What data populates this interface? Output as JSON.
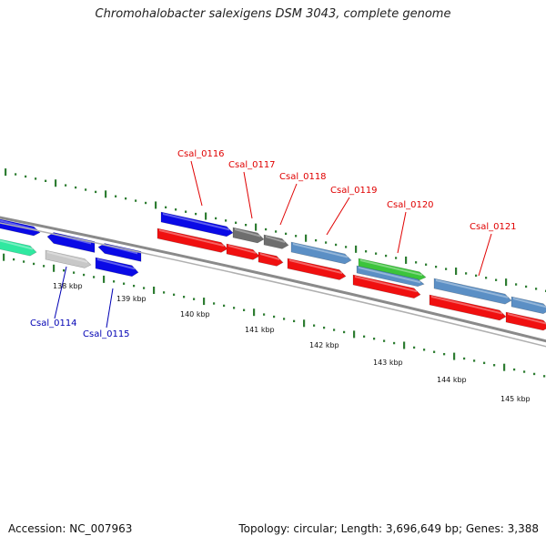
{
  "title": "Chromohalobacter salexigens DSM 3043, complete genome",
  "footer": {
    "accession": "Accession: NC_007963",
    "topology": "Topology: circular; Length: 3,696,649 bp; Genes: 3,388"
  },
  "colors": {
    "backbone": "#8a8a8a",
    "tick": "#2e7d32",
    "label_red": "#e00000",
    "label_blue": "#0000b4",
    "blue_gene": "#0a0ae6",
    "red_gene": "#f01010",
    "steel_gene": "#5b8fc5",
    "gray_gene": "#6e6e6e",
    "green_gene": "#3cc43c",
    "light_gray_gene": "#c8c8c8",
    "teal_gene": "#30e8a0"
  },
  "scale": {
    "unit": "kbp",
    "ticks": [
      {
        "label": "138 kbp",
        "kbp": 138
      },
      {
        "label": "139 kbp",
        "kbp": 139
      },
      {
        "label": "140 kbp",
        "kbp": 140
      },
      {
        "label": "141 kbp",
        "kbp": 141
      },
      {
        "label": "142 kbp",
        "kbp": 142
      },
      {
        "label": "143 kbp",
        "kbp": 143
      },
      {
        "label": "144 kbp",
        "kbp": 144
      },
      {
        "label": "145 kbp",
        "kbp": 145
      }
    ]
  },
  "gene_labels": [
    {
      "text": "Csal_0114",
      "color": "blue"
    },
    {
      "text": "Csal_0115",
      "color": "blue"
    },
    {
      "text": "Csal_0116",
      "color": "red"
    },
    {
      "text": "Csal_0117",
      "color": "red"
    },
    {
      "text": "Csal_0118",
      "color": "red"
    },
    {
      "text": "Csal_0119",
      "color": "red"
    },
    {
      "text": "Csal_0120",
      "color": "red"
    },
    {
      "text": "Csal_0121",
      "color": "red"
    }
  ]
}
